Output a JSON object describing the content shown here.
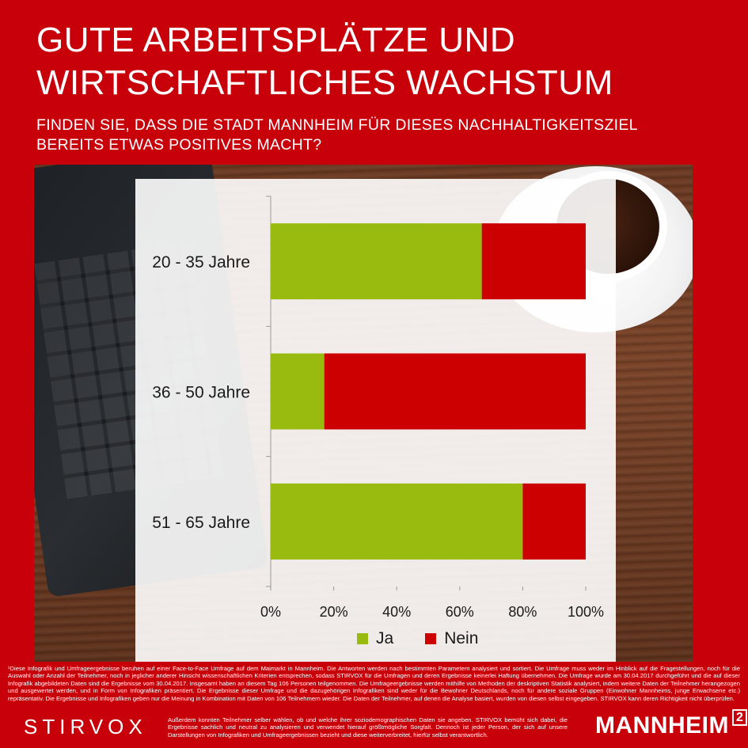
{
  "title": "GUTE ARBEITSPLÄTZE UND WIRTSCHAFTLICHES WACHSTUM",
  "title_lines": [
    "GUTE ARBEITSPLÄTZE UND",
    "WIRTSCHAFTLICHES WACHSTUM"
  ],
  "subtitle_lines": [
    "FINDEN SIE, DASS DIE STADT MANNHEIM FÜR DIESES NACHHALTIGKEITSZIEL",
    "BEREITS ETWAS POSITIVES MACHT?"
  ],
  "colors": {
    "background": "#c8000a",
    "ja": "#99bb0f",
    "nein": "#cc0000"
  },
  "chart_data": {
    "type": "bar",
    "orientation": "horizontal",
    "stacked": true,
    "percent": true,
    "categories": [
      "20 - 35 Jahre",
      "36 - 50 Jahre",
      "51 - 65 Jahre"
    ],
    "series": [
      {
        "name": "Ja",
        "values": [
          67,
          17,
          80
        ]
      },
      {
        "name": "Nein",
        "values": [
          33,
          83,
          20
        ]
      }
    ],
    "x_ticks": [
      "0%",
      "20%",
      "40%",
      "60%",
      "80%",
      "100%"
    ],
    "xlim": [
      0,
      100
    ],
    "legend": "bottom"
  },
  "footnote_main": "¹Diese Infografik und Umfrageergebnisse beruhen auf einer Face-to-Face Umfrage auf dem Maimarkt in Mannheim. Die Antworten werden nach bestimmten Parametern analysiert und sortiert. Die Umfrage muss weder im Hinblick auf die Fragestellungen, noch für die Auswahl oder Anzahl der Teilnehmer, noch in jeglicher anderer Hinsicht wissenschaftlichen Kriterien entsprechen, sodass STIRVOX für die Umfragen und deren Ergebnisse keinerlei Haftung übernehmen. Die Umfrage wurde am 30.04.2017 durchgeführt und die auf dieser Infografik abgebildeten Daten sind die Ergebnisse vom 30.04.2017. Insgesamt haben an diesem Tag 106 Personen teilgenommen. Die Umfrageergebnisse werden mithilfe von Methoden der deskriptiven Statistik analysiert, indem weitere Daten der Teilnehmer herangezogen und ausgewertet werden, und in Form von Infografiken präsentiert. Die Ergebnisse dieser Umfrage und die dazugehörigen Infografiken sind weder für die Bewohner Deutschlands, noch für andere soziale Gruppen (Einwohner Mannheims, junge Erwachsene etc.) repräsentativ. Die Ergebnisse und Infografiken geben nur die Meinung in Kombination mit Daten von 106 Teilnehmern wieder. Die Daten der Teilnehmer, auf denen die Analyse basiert, wurden von diesen selbst eingegeben. STIRVOX kann deren Richtigkeit nicht überprüfen.",
  "footnote_rest": "Außerdem konnten Teilnehmer selber wählen, ob und welche ihrer soziodemographischen Daten sie angeben. STIRVOX bemüht sich dabei, die Ergebnisse sachlich und neutral zu analysieren und verwendet hierauf größtmögliche Sorgfalt. Dennoch ist jeder Person, der sich auf unsere Darstellungen von Infografiken und Umfrageergebnissen bezieht und diese weiterverbreitet, hierfür selbst verantwortlich.",
  "logo_left": "STIRVOX",
  "logo_right": "MANNHEIM",
  "logo_right_sup": "2"
}
